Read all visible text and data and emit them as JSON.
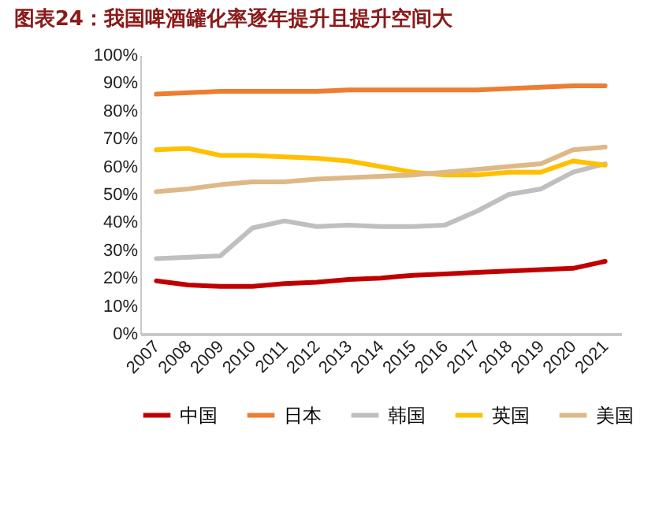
{
  "chart_data": {
    "type": "line",
    "title": "图表24：我国啤酒罐化率逐年提升且提升空间大",
    "categories": [
      "2007",
      "2008",
      "2009",
      "2010",
      "2011",
      "2012",
      "2013",
      "2014",
      "2015",
      "2016",
      "2017",
      "2018",
      "2019",
      "2020",
      "2021"
    ],
    "ylim": [
      0,
      100
    ],
    "yticks": [
      {
        "value": 0,
        "label": "0%"
      },
      {
        "value": 10,
        "label": "10%"
      },
      {
        "value": 20,
        "label": "20%"
      },
      {
        "value": 30,
        "label": "30%"
      },
      {
        "value": 40,
        "label": "40%"
      },
      {
        "value": 50,
        "label": "50%"
      },
      {
        "value": 60,
        "label": "60%"
      },
      {
        "value": 70,
        "label": "70%"
      },
      {
        "value": 80,
        "label": "80%"
      },
      {
        "value": 90,
        "label": "90%"
      },
      {
        "value": 100,
        "label": "100%"
      }
    ],
    "legend": "bottom",
    "grid": false,
    "series": [
      {
        "name": "中国",
        "color": "#c00000",
        "values": [
          19,
          17.5,
          17,
          17,
          18,
          18.5,
          19.5,
          20,
          21,
          21.5,
          22,
          22.5,
          23,
          23.5,
          26
        ]
      },
      {
        "name": "日本",
        "color": "#ed7d31",
        "values": [
          86,
          86.5,
          87,
          87,
          87,
          87,
          87.5,
          87.5,
          87.5,
          87.5,
          87.5,
          88,
          88.5,
          89,
          89
        ]
      },
      {
        "name": "韩国",
        "color": "#bfbfbf",
        "values": [
          27,
          27.5,
          28,
          38,
          40.5,
          38.5,
          39,
          38.5,
          38.5,
          39,
          44,
          50,
          52,
          58,
          61
        ]
      },
      {
        "name": "英国",
        "color": "#ffc000",
        "values": [
          66,
          66.5,
          64,
          64,
          63.5,
          63,
          62,
          60,
          58,
          57,
          57,
          58,
          58,
          62,
          60.5
        ]
      },
      {
        "name": "美国",
        "color": "#deb887",
        "values": [
          51,
          52,
          53.5,
          54.5,
          54.5,
          55.5,
          56,
          56.5,
          57,
          58,
          59,
          60,
          61,
          66,
          67
        ]
      }
    ]
  }
}
